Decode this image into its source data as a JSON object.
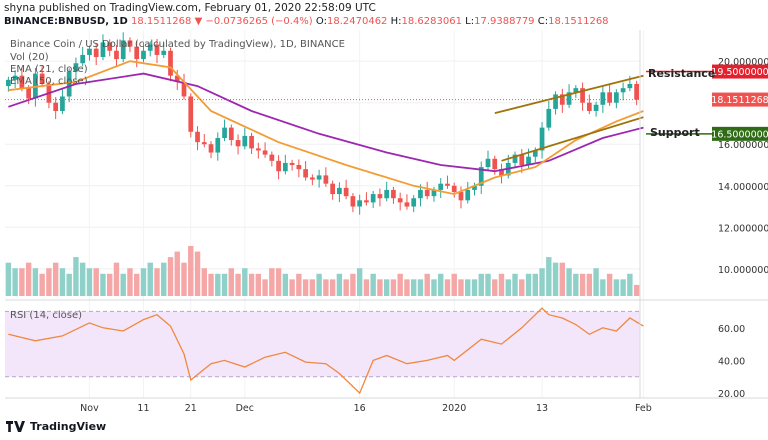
{
  "header": {
    "publisher_line": "shyna published on TradingView.com, February 01, 2020 22:58:09 UTC"
  },
  "ohlc": {
    "symbol": "BINANCE:BNBUSD, 1D",
    "last": "18.1511268",
    "change": "−0.0736265 (−0.4%)",
    "open_label": "O:",
    "open": "18.2470462",
    "high_label": "H:",
    "high": "18.6283061",
    "low_label": "L:",
    "low": "17.9388779",
    "close_label": "C:",
    "close": "18.1511268"
  },
  "legend": {
    "title": "Binance Coin / US Dollar (calculated by TradingView), 1D, BINANCE",
    "vol": "Vol (20)",
    "ema21": "EMA (21, close)",
    "ema50": "EMA (50, close)"
  },
  "annotations": {
    "resistance": "Resistance",
    "support": "Support"
  },
  "price_tags": {
    "resistance": "19.5000000",
    "current": "18.1511268",
    "support": "16.5000000"
  },
  "rsi_legend": "RSI (14, close)",
  "footer": {
    "brand": "TradingView"
  },
  "colors": {
    "up": "#26a69a",
    "down": "#ef5350",
    "ema21": "#f39c34",
    "ema50": "#9c27b0",
    "channel": "#a0730a",
    "resistance": "#e5202d",
    "support": "#2e6b14",
    "rsi_line": "#f0883e",
    "rsi_band": "#f3e6fb"
  },
  "chart_data": [
    {
      "type": "candlestick",
      "title": "Binance Coin / US Dollar (calculated by TradingView), 1D, BINANCE",
      "y_ticks": [
        20,
        18,
        16,
        14,
        12,
        10
      ],
      "y_tick_labels": [
        "20.0000000",
        "18.0000000",
        "16.0000000",
        "14.0000000",
        "12.0000000",
        "10.0000000"
      ],
      "ylim": [
        8.5,
        21.5
      ],
      "x_tick_labels": [
        "Nov",
        "11",
        "21",
        "Dec",
        "16",
        "2020",
        "13",
        "Feb"
      ],
      "x_tick_index": [
        12,
        20,
        27,
        35,
        52,
        66,
        79,
        94
      ],
      "closes": [
        19.1,
        19.3,
        18.7,
        18.2,
        19.4,
        18.9,
        18.0,
        17.6,
        18.3,
        19.5,
        19.9,
        20.3,
        20.6,
        20.2,
        20.9,
        20.5,
        20.1,
        21.0,
        20.7,
        20.1,
        20.5,
        20.8,
        20.3,
        20.5,
        19.3,
        19.0,
        18.3,
        16.6,
        16.1,
        16.0,
        15.6,
        16.3,
        16.8,
        16.2,
        15.9,
        16.4,
        15.8,
        15.7,
        15.5,
        15.2,
        14.7,
        15.1,
        15.0,
        14.8,
        14.4,
        14.3,
        14.5,
        14.1,
        13.6,
        13.9,
        13.5,
        13.0,
        13.3,
        13.2,
        13.6,
        13.4,
        13.8,
        13.4,
        13.2,
        13.0,
        13.4,
        13.8,
        13.5,
        13.8,
        14.1,
        14.0,
        13.7,
        13.3,
        13.8,
        14.0,
        14.9,
        15.3,
        14.8,
        14.5,
        15.1,
        15.5,
        15.0,
        15.4,
        15.7,
        16.8,
        17.7,
        18.4,
        17.9,
        18.5,
        18.7,
        18.0,
        17.6,
        17.9,
        18.5,
        18.0,
        18.5,
        18.7,
        18.9,
        18.15
      ],
      "ema21_at": [
        [
          0,
          18.6
        ],
        [
          10,
          19.0
        ],
        [
          18,
          20.0
        ],
        [
          24,
          19.7
        ],
        [
          30,
          17.6
        ],
        [
          40,
          16.1
        ],
        [
          50,
          15.0
        ],
        [
          60,
          14.0
        ],
        [
          66,
          13.6
        ],
        [
          72,
          14.4
        ],
        [
          78,
          14.9
        ],
        [
          84,
          16.2
        ],
        [
          90,
          17.1
        ],
        [
          94,
          17.6
        ]
      ],
      "ema50_at": [
        [
          0,
          17.8
        ],
        [
          10,
          18.9
        ],
        [
          20,
          19.4
        ],
        [
          28,
          18.8
        ],
        [
          36,
          17.6
        ],
        [
          46,
          16.5
        ],
        [
          56,
          15.6
        ],
        [
          64,
          15.0
        ],
        [
          72,
          14.7
        ],
        [
          80,
          15.2
        ],
        [
          88,
          16.3
        ],
        [
          94,
          16.8
        ]
      ],
      "channel_upper": [
        [
          72,
          17.5
        ],
        [
          94,
          19.3
        ]
      ],
      "channel_lower": [
        [
          73,
          15.2
        ],
        [
          94,
          17.3
        ]
      ],
      "resistance": 19.5,
      "support": 16.5
    },
    {
      "type": "bar",
      "title": "Vol (20)",
      "values": [
        6,
        5,
        5,
        6,
        5,
        4,
        5,
        6,
        5,
        4,
        7,
        6,
        5,
        5,
        4,
        4,
        6,
        4,
        5,
        4,
        5,
        6,
        5,
        6,
        7,
        8,
        6,
        9,
        8,
        5,
        4,
        4,
        4,
        5,
        4,
        5,
        4,
        4,
        3,
        5,
        5,
        4,
        3,
        4,
        3,
        3,
        4,
        3,
        3,
        4,
        3,
        4,
        5,
        3,
        4,
        3,
        3,
        3,
        4,
        3,
        3,
        3,
        4,
        3,
        4,
        3,
        4,
        3,
        3,
        3,
        4,
        4,
        3,
        4,
        3,
        4,
        3,
        4,
        4,
        5,
        7,
        6,
        6,
        5,
        4,
        4,
        4,
        5,
        3,
        4,
        3,
        3,
        4,
        2
      ]
    },
    {
      "type": "line",
      "title": "RSI (14, close)",
      "y_ticks": [
        60,
        40,
        20
      ],
      "y_tick_labels": [
        "60.00",
        "40.00",
        "20.00"
      ],
      "band": [
        30,
        70
      ],
      "ylim": [
        17,
        77
      ],
      "x_index": [
        0,
        4,
        8,
        12,
        14,
        17,
        20,
        22,
        24,
        26,
        27,
        30,
        32,
        35,
        38,
        41,
        44,
        47,
        49,
        52,
        54,
        56,
        59,
        62,
        65,
        66,
        70,
        73,
        76,
        79,
        80,
        82,
        84,
        86,
        88,
        90,
        92,
        94
      ],
      "values": [
        56,
        52,
        55,
        63,
        60,
        58,
        65,
        68,
        61,
        44,
        28,
        38,
        40,
        36,
        42,
        45,
        39,
        38,
        32,
        20,
        40,
        43,
        38,
        40,
        43,
        40,
        53,
        50,
        60,
        72,
        68,
        66,
        62,
        56,
        60,
        58,
        66,
        61
      ]
    }
  ]
}
